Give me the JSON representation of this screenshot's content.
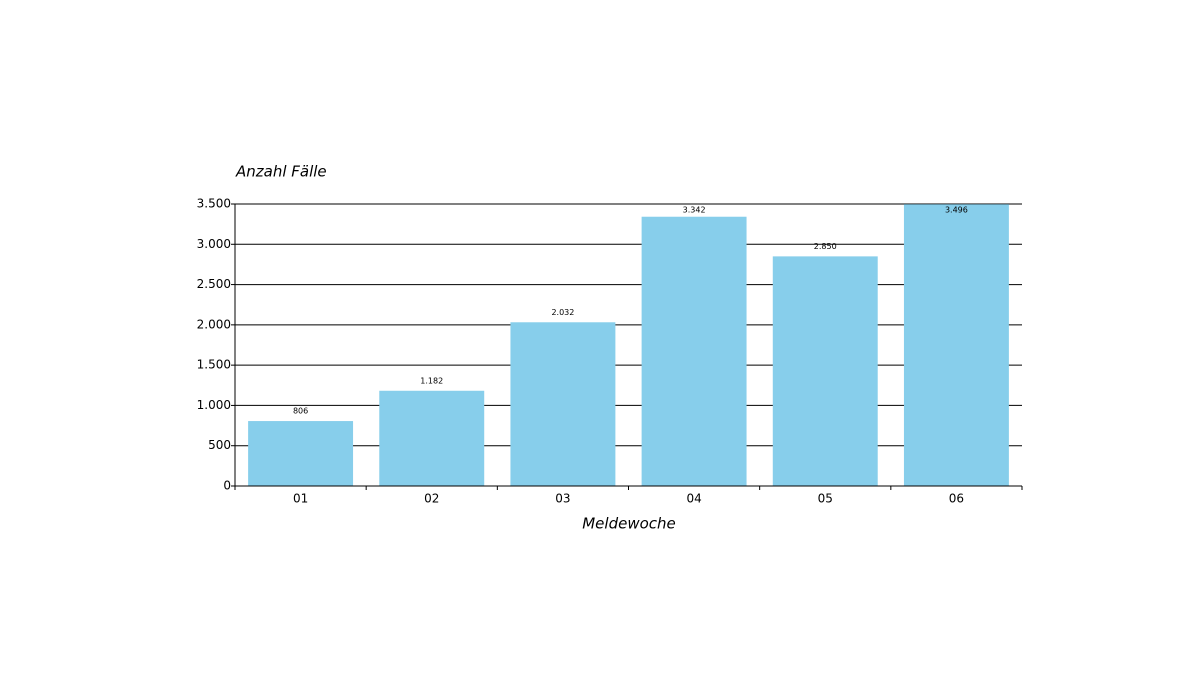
{
  "chart_data": {
    "type": "bar",
    "y_label": "Anzahl Fälle",
    "x_label": "Meldewoche",
    "categories": [
      "01",
      "02",
      "03",
      "04",
      "05",
      "06"
    ],
    "values": [
      806,
      1182,
      2032,
      3342,
      2850,
      3496
    ],
    "value_labels": [
      "806",
      "1.182",
      "2.032",
      "3.342",
      "2.850",
      "3.496"
    ],
    "color": "#87ceeb",
    "ylim": [
      0,
      3500
    ],
    "yticks": [
      0,
      500,
      {
        "value": 1000,
        "label": "1.000"
      },
      {
        "value": 1500,
        "label": "1.500"
      },
      {
        "value": 2000,
        "label": "2.000"
      },
      {
        "value": 2500,
        "label": "2.500"
      },
      {
        "value": 3000,
        "label": "3.000"
      },
      {
        "value": 3500,
        "label": "3.500"
      }
    ],
    "grid": true
  }
}
